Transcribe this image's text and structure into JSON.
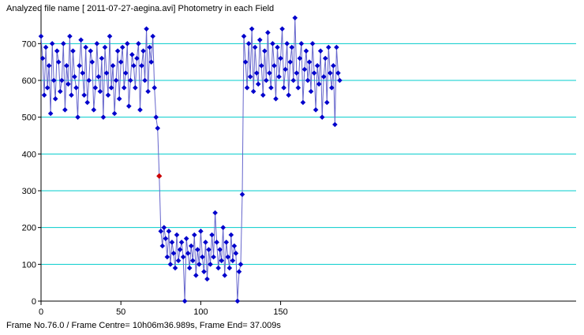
{
  "header": {
    "title": "Analyzed file name [ 2011-07-27-aegina.avi]   Photometry in each Field"
  },
  "status": {
    "text": "Frame No.76.0 / Frame Centre= 10h06m36.989s,  Frame End= 37.009s"
  },
  "colors": {
    "gridline": "#00cccc",
    "series": "#0000cc",
    "line": "#6666cc",
    "highlight": "#cc0000",
    "axis": "#000000"
  },
  "chart_data": {
    "type": "line",
    "xlim": [
      0,
      335
    ],
    "ylim": [
      0,
      780
    ],
    "xticks": [
      0,
      50,
      100,
      150
    ],
    "yticks": [
      0,
      100,
      200,
      300,
      400,
      500,
      600,
      700
    ],
    "grid": "horizontal",
    "highlight_point": {
      "x": 74,
      "y": 340
    },
    "series": [
      {
        "x": [
          0,
          1,
          2,
          3,
          4,
          5,
          6,
          7,
          8,
          9,
          10,
          11,
          12,
          13,
          14,
          15,
          16,
          17,
          18,
          19,
          20,
          21,
          22,
          23,
          24,
          25,
          26,
          27,
          28,
          29,
          30,
          31,
          32,
          33,
          34,
          35,
          36,
          37,
          38,
          39,
          40,
          41,
          42,
          43,
          44,
          45,
          46,
          47,
          48,
          49,
          50,
          51,
          52,
          53,
          54,
          55,
          56,
          57,
          58,
          59,
          60,
          61,
          62,
          63,
          64,
          65,
          66,
          67,
          68,
          69,
          70,
          71,
          72,
          73,
          74,
          75,
          76,
          77,
          78,
          79,
          80,
          81,
          82,
          83,
          84,
          85,
          86,
          87,
          88,
          89,
          90,
          91,
          92,
          93,
          94,
          95,
          96,
          97,
          98,
          99,
          100,
          101,
          102,
          103,
          104,
          105,
          106,
          107,
          108,
          109,
          110,
          111,
          112,
          113,
          114,
          115,
          116,
          117,
          118,
          119,
          120,
          121,
          122,
          123,
          124,
          125,
          126,
          127,
          128,
          129,
          130,
          131,
          132,
          133,
          134,
          135,
          136,
          137,
          138,
          139,
          140,
          141,
          142,
          143,
          144,
          145,
          146,
          147,
          148,
          149,
          150,
          151,
          152,
          153,
          154,
          155,
          156,
          157,
          158,
          159,
          160,
          161,
          162,
          163,
          164,
          165,
          166,
          167,
          168,
          169,
          170,
          171,
          172,
          173,
          174,
          175,
          176,
          177,
          178,
          179,
          180,
          181,
          182,
          183,
          184,
          185,
          186,
          187
        ],
        "y": [
          720,
          660,
          560,
          690,
          580,
          640,
          510,
          700,
          600,
          550,
          680,
          650,
          570,
          600,
          700,
          520,
          640,
          590,
          720,
          560,
          680,
          610,
          580,
          500,
          640,
          710,
          620,
          560,
          690,
          540,
          600,
          680,
          650,
          520,
          580,
          700,
          610,
          570,
          660,
          500,
          690,
          620,
          560,
          720,
          580,
          640,
          510,
          600,
          680,
          550,
          650,
          690,
          580,
          620,
          700,
          530,
          600,
          670,
          640,
          580,
          660,
          700,
          520,
          640,
          680,
          600,
          740,
          570,
          690,
          650,
          720,
          580,
          500,
          470,
          340,
          190,
          150,
          200,
          170,
          120,
          190,
          100,
          160,
          130,
          90,
          180,
          110,
          140,
          160,
          120,
          0,
          170,
          130,
          90,
          150,
          110,
          180,
          70,
          140,
          100,
          190,
          120,
          80,
          160,
          60,
          140,
          100,
          180,
          120,
          240,
          160,
          90,
          140,
          110,
          200,
          70,
          160,
          120,
          90,
          180,
          110,
          150,
          130,
          0,
          80,
          100,
          290,
          720,
          650,
          580,
          700,
          610,
          740,
          570,
          690,
          620,
          590,
          710,
          640,
          560,
          680,
          600,
          730,
          620,
          580,
          700,
          640,
          550,
          690,
          610,
          660,
          740,
          580,
          630,
          700,
          560,
          650,
          690,
          600,
          770,
          620,
          580,
          660,
          700,
          540,
          630,
          680,
          600,
          650,
          570,
          700,
          620,
          520,
          640,
          590,
          680,
          500,
          610,
          660,
          540,
          690,
          620,
          580,
          640,
          480,
          690,
          620,
          600
        ]
      }
    ]
  }
}
